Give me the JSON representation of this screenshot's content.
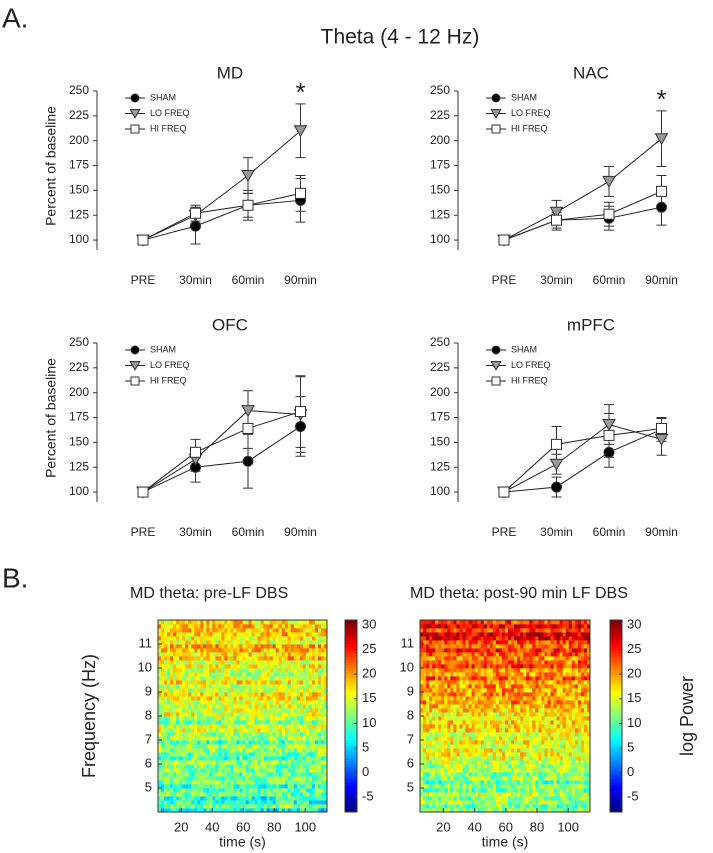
{
  "panel_labels": [
    "A.",
    "B."
  ],
  "section_title": "Theta (4 - 12 Hz)",
  "chart_data": [
    {
      "type": "line",
      "title": "MD",
      "ylabel": "Percent of baseline",
      "annotation": "*",
      "categories": [
        "PRE",
        "30min",
        "60min",
        "90min"
      ],
      "ylim": [
        90,
        250
      ],
      "yticks": [
        100,
        125,
        150,
        175,
        200,
        225,
        250
      ],
      "series": [
        {
          "name": "SHAM",
          "color": "#000000",
          "marker": "circle",
          "values": [
            100,
            114,
            135,
            140
          ],
          "errors": [
            5,
            18,
            15,
            22
          ]
        },
        {
          "name": "LO FREQ",
          "color": "#999999",
          "marker": "triangle-down",
          "values": [
            100,
            125,
            165,
            210
          ],
          "errors": [
            5,
            8,
            18,
            27
          ]
        },
        {
          "name": "HI FREQ",
          "color": "#ffffff",
          "marker": "square",
          "values": [
            100,
            127,
            135,
            147
          ],
          "errors": [
            5,
            8,
            12,
            18
          ]
        }
      ]
    },
    {
      "type": "line",
      "title": "NAC",
      "annotation": "*",
      "categories": [
        "PRE",
        "30min",
        "60min",
        "90min"
      ],
      "ylim": [
        90,
        250
      ],
      "yticks": [
        100,
        125,
        150,
        175,
        200,
        225,
        250
      ],
      "series": [
        {
          "name": "SHAM",
          "color": "#000000",
          "marker": "circle",
          "values": [
            100,
            120,
            122,
            133
          ],
          "errors": [
            4,
            10,
            12,
            18
          ]
        },
        {
          "name": "LO FREQ",
          "color": "#999999",
          "marker": "triangle-down",
          "values": [
            100,
            128,
            159,
            202
          ],
          "errors": [
            4,
            12,
            15,
            28
          ]
        },
        {
          "name": "HI FREQ",
          "color": "#ffffff",
          "marker": "square",
          "values": [
            100,
            120,
            126,
            149
          ],
          "errors": [
            4,
            8,
            12,
            16
          ]
        }
      ]
    },
    {
      "type": "line",
      "title": "OFC",
      "ylabel": "Percent of baseline",
      "categories": [
        "PRE",
        "30min",
        "60min",
        "90min"
      ],
      "ylim": [
        90,
        250
      ],
      "yticks": [
        100,
        125,
        150,
        175,
        200,
        225,
        250
      ],
      "series": [
        {
          "name": "SHAM",
          "color": "#000000",
          "marker": "circle",
          "values": [
            100,
            125,
            131,
            166
          ],
          "errors": [
            4,
            15,
            27,
            30
          ]
        },
        {
          "name": "LO FREQ",
          "color": "#999999",
          "marker": "triangle-down",
          "values": [
            100,
            133,
            182,
            178
          ],
          "errors": [
            4,
            12,
            20,
            38
          ]
        },
        {
          "name": "HI FREQ",
          "color": "#ffffff",
          "marker": "square",
          "values": [
            100,
            140,
            164,
            181
          ],
          "errors": [
            4,
            13,
            20,
            36
          ]
        }
      ]
    },
    {
      "type": "line",
      "title": "mPFC",
      "categories": [
        "PRE",
        "30min",
        "60min",
        "90min"
      ],
      "ylim": [
        90,
        250
      ],
      "yticks": [
        100,
        125,
        150,
        175,
        200,
        225,
        250
      ],
      "series": [
        {
          "name": "SHAM",
          "color": "#000000",
          "marker": "circle",
          "values": [
            100,
            105,
            140,
            163
          ],
          "errors": [
            4,
            10,
            15,
            12
          ]
        },
        {
          "name": "LO FREQ",
          "color": "#999999",
          "marker": "triangle-down",
          "values": [
            100,
            128,
            168,
            153
          ],
          "errors": [
            4,
            10,
            20,
            16
          ]
        },
        {
          "name": "HI FREQ",
          "color": "#ffffff",
          "marker": "square",
          "values": [
            100,
            148,
            157,
            164
          ],
          "errors": [
            4,
            18,
            22,
            10
          ]
        }
      ]
    },
    {
      "type": "heatmap",
      "title": "MD theta: pre-LF DBS",
      "xlabel": "time (s)",
      "ylabel": "Frequency (Hz)",
      "colormap": "jet",
      "xlim": [
        5,
        114
      ],
      "ylim": [
        4,
        12
      ],
      "xticks": [
        20,
        40,
        60,
        80,
        100
      ],
      "yticks": [
        5,
        6,
        7,
        8,
        9,
        10,
        11
      ],
      "clim": [
        -8,
        31
      ],
      "cticks": [
        -5,
        0,
        5,
        10,
        15,
        20,
        25,
        30
      ]
    },
    {
      "type": "heatmap",
      "title": "MD theta: post-90 min LF DBS",
      "xlabel": "time (s)",
      "colorbar_label": "log Power",
      "colormap": "jet",
      "xlim": [
        5,
        114
      ],
      "ylim": [
        4,
        12
      ],
      "xticks": [
        20,
        40,
        60,
        80,
        100
      ],
      "yticks": [
        5,
        6,
        7,
        8,
        9,
        10,
        11
      ],
      "clim": [
        -8,
        31
      ],
      "cticks": [
        -5,
        0,
        5,
        10,
        15,
        20,
        25,
        30
      ]
    }
  ]
}
